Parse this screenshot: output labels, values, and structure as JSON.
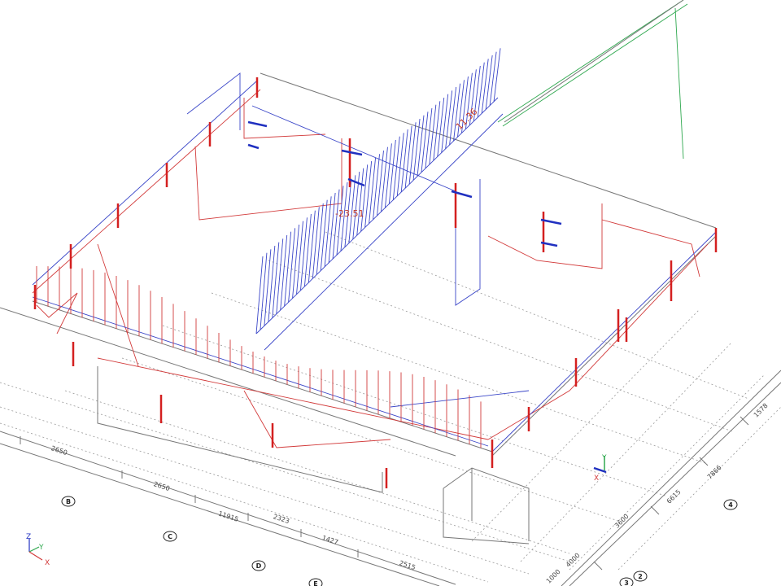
{
  "result_labels": [
    "11.36",
    "-23.51"
  ],
  "dimensions_front": [
    "2650",
    "2650",
    "11915",
    "2323",
    "1427",
    "2515"
  ],
  "dimensions_side": [
    "1000",
    "4000",
    "3600",
    "6615",
    "7866",
    "1578"
  ],
  "grid_bubbles_front": [
    "B",
    "C",
    "D",
    "E"
  ],
  "grid_bubbles_side": [
    "4",
    "3",
    "2"
  ],
  "axis_triad": {
    "z": "Z",
    "y": "Y",
    "x": "X"
  },
  "local_axes": {
    "y": "Y",
    "x": "X"
  }
}
